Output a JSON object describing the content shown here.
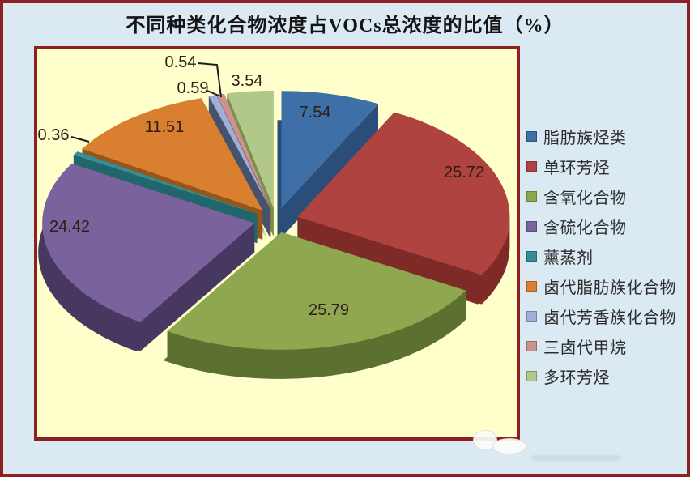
{
  "title": "不同种类化合物浓度占VOCs总浓度的比值（%）",
  "chart_data": {
    "type": "pie",
    "three_d": true,
    "exploded": true,
    "unit": "%",
    "title": "不同种类化合物浓度占VOCs总浓度的比值（%）",
    "legend_position": "right",
    "start_angle_deg": 0,
    "direction": "clockwise",
    "categories": [
      "脂肪族烃类",
      "单环芳烃",
      "含氧化合物",
      "含硫化合物",
      "薰蒸剂",
      "卤代脂肪族化合物",
      "卤代芳香族化合物",
      "三卤代甲烷",
      "多环芳烃"
    ],
    "values": [
      7.54,
      25.72,
      25.79,
      24.42,
      0.36,
      11.51,
      0.59,
      0.54,
      3.54
    ],
    "labels": [
      "7.54",
      "25.72",
      "25.79",
      "24.42",
      "0.36",
      "11.51",
      "0.59",
      "0.54",
      "3.54"
    ],
    "slice_colors": [
      "#3E6FA6",
      "#AE4340",
      "#8FA850",
      "#7A639D",
      "#348E94",
      "#D8802F",
      "#9FB0D8",
      "#CC928F",
      "#B2C88B"
    ],
    "slice_side_colors": [
      "#2A4E79",
      "#7E2B28",
      "#5C7030",
      "#473861",
      "#20666A",
      "#96551A",
      "#45536E",
      "#97605D",
      "#77904A"
    ]
  },
  "colors": {
    "outer_background": "#DBE9F3",
    "outer_frame": "#8C2022",
    "plot_background": "#FFFFCB",
    "plot_border": "#8C2022",
    "title_text": "#151515",
    "data_label_text": "#2E1D15",
    "legend_text": "#2d2d2d",
    "leader_line": "#1a1a1a"
  }
}
